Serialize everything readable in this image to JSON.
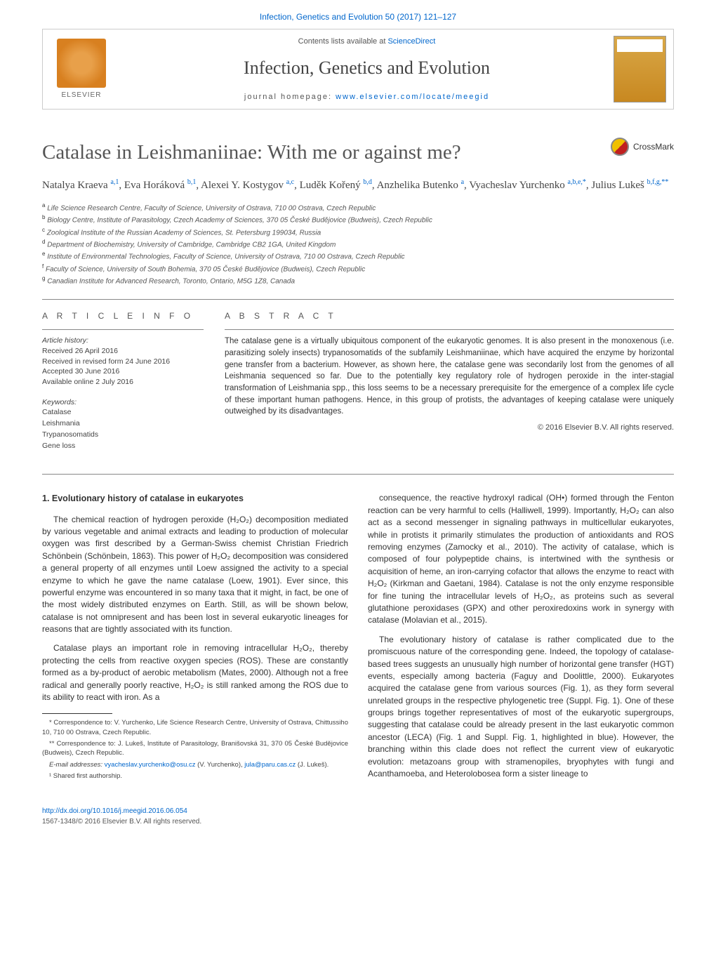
{
  "header": {
    "citation": "Infection, Genetics and Evolution 50 (2017) 121–127",
    "contents_prefix": "Contents lists available at ",
    "contents_link": "ScienceDirect",
    "journal_name": "Infection, Genetics and Evolution",
    "homepage_prefix": "journal homepage: ",
    "homepage_url": "www.elsevier.com/locate/meegid",
    "publisher": "ELSEVIER"
  },
  "title": "Catalase in Leishmaniinae: With me or against me?",
  "crossmark": "CrossMark",
  "authors_html": "Natalya Kraeva <sup>a,1</sup>, Eva Horáková <sup>b,1</sup>, Alexei Y. Kostygov <sup>a,c</sup>, Luděk Kořený <sup>b,d</sup>, Anzhelika Butenko <sup>a</sup>, Vyacheslav Yurchenko <sup>a,b,e,*</sup>, Julius Lukeš <sup>b,f,g,**</sup>",
  "affiliations": [
    {
      "key": "a",
      "text": "Life Science Research Centre, Faculty of Science, University of Ostrava, 710 00 Ostrava, Czech Republic"
    },
    {
      "key": "b",
      "text": "Biology Centre, Institute of Parasitology, Czech Academy of Sciences, 370 05 České Budějovice (Budweis), Czech Republic"
    },
    {
      "key": "c",
      "text": "Zoological Institute of the Russian Academy of Sciences, St. Petersburg 199034, Russia"
    },
    {
      "key": "d",
      "text": "Department of Biochemistry, University of Cambridge, Cambridge CB2 1GA, United Kingdom"
    },
    {
      "key": "e",
      "text": "Institute of Environmental Technologies, Faculty of Science, University of Ostrava, 710 00 Ostrava, Czech Republic"
    },
    {
      "key": "f",
      "text": "Faculty of Science, University of South Bohemia, 370 05 České Budějovice (Budweis), Czech Republic"
    },
    {
      "key": "g",
      "text": "Canadian Institute for Advanced Research, Toronto, Ontario, M5G 1Z8, Canada"
    }
  ],
  "article_info": {
    "heading": "A R T I C L E   I N F O",
    "history_label": "Article history:",
    "history": [
      "Received 26 April 2016",
      "Received in revised form 24 June 2016",
      "Accepted 30 June 2016",
      "Available online 2 July 2016"
    ],
    "keywords_label": "Keywords:",
    "keywords": [
      "Catalase",
      "Leishmania",
      "Trypanosomatids",
      "Gene loss"
    ]
  },
  "abstract": {
    "heading": "A B S T R A C T",
    "text": "The catalase gene is a virtually ubiquitous component of the eukaryotic genomes. It is also present in the monoxenous (i.e. parasitizing solely insects) trypanosomatids of the subfamily Leishmaniinae, which have acquired the enzyme by horizontal gene transfer from a bacterium. However, as shown here, the catalase gene was secondarily lost from the genomes of all Leishmania sequenced so far. Due to the potentially key regulatory role of hydrogen peroxide in the inter-stagial transformation of Leishmania spp., this loss seems to be a necessary prerequisite for the emergence of a complex life cycle of these important human pathogens. Hence, in this group of protists, the advantages of keeping catalase were uniquely outweighed by its disadvantages.",
    "copyright": "© 2016 Elsevier B.V. All rights reserved."
  },
  "section1": {
    "heading": "1. Evolutionary history of catalase in eukaryotes",
    "paragraphs": [
      "The chemical reaction of hydrogen peroxide (H₂O₂) decomposition mediated by various vegetable and animal extracts and leading to production of molecular oxygen was first described by a German-Swiss chemist Christian Friedrich Schönbein (Schönbein, 1863). This power of H₂O₂ decomposition was considered a general property of all enzymes until Loew assigned the activity to a special enzyme to which he gave the name catalase (Loew, 1901). Ever since, this powerful enzyme was encountered in so many taxa that it might, in fact, be one of the most widely distributed enzymes on Earth. Still, as will be shown below, catalase is not omnipresent and has been lost in several eukaryotic lineages for reasons that are tightly associated with its function.",
      "Catalase plays an important role in removing intracellular H₂O₂, thereby protecting the cells from reactive oxygen species (ROS). These are constantly formed as a by-product of aerobic metabolism (Mates, 2000). Although not a free radical and generally poorly reactive, H₂O₂ is still ranked among the ROS due to its ability to react with iron. As a",
      "consequence, the reactive hydroxyl radical (OH•) formed through the Fenton reaction can be very harmful to cells (Halliwell, 1999). Importantly, H₂O₂ can also act as a second messenger in signaling pathways in multicellular eukaryotes, while in protists it primarily stimulates the production of antioxidants and ROS removing enzymes (Zamocky et al., 2010). The activity of catalase, which is composed of four polypeptide chains, is intertwined with the synthesis or acquisition of heme, an iron-carrying cofactor that allows the enzyme to react with H₂O₂ (Kirkman and Gaetani, 1984). Catalase is not the only enzyme responsible for fine tuning the intracellular levels of H₂O₂, as proteins such as several glutathione peroxidases (GPX) and other peroxiredoxins work in synergy with catalase (Molavian et al., 2015).",
      "The evolutionary history of catalase is rather complicated due to the promiscuous nature of the corresponding gene. Indeed, the topology of catalase-based trees suggests an unusually high number of horizontal gene transfer (HGT) events, especially among bacteria (Faguy and Doolittle, 2000). Eukaryotes acquired the catalase gene from various sources (Fig. 1), as they form several unrelated groups in the respective phylogenetic tree (Suppl. Fig. 1). One of these groups brings together representatives of most of the eukaryotic supergroups, suggesting that catalase could be already present in the last eukaryotic common ancestor (LECA) (Fig. 1 and Suppl. Fig. 1, highlighted in blue). However, the branching within this clade does not reflect the current view of eukaryotic evolution: metazoans group with stramenopiles, bryophytes with fungi and Acanthamoeba, and Heterolobosea form a sister lineage to"
    ]
  },
  "footnotes": {
    "corr1": "* Correspondence to: V. Yurchenko, Life Science Research Centre, University of Ostrava, Chittussiho 10, 710 00 Ostrava, Czech Republic.",
    "corr2": "** Correspondence to: J. Lukeš, Institute of Parasitology, Branišovská 31, 370 05 České Budějovice (Budweis), Czech Republic.",
    "email_label": "E-mail addresses: ",
    "email1": "vyacheslav.yurchenko@osu.cz",
    "email1_who": " (V. Yurchenko), ",
    "email2": "jula@paru.cas.cz",
    "email2_who": " (J. Lukeš).",
    "shared": "¹ Shared first authorship."
  },
  "footer": {
    "doi": "http://dx.doi.org/10.1016/j.meegid.2016.06.054",
    "issn": "1567-1348/© 2016 Elsevier B.V. All rights reserved."
  },
  "colors": {
    "link": "#0066cc",
    "text": "#333333",
    "muted": "#555555",
    "border": "#888888"
  }
}
